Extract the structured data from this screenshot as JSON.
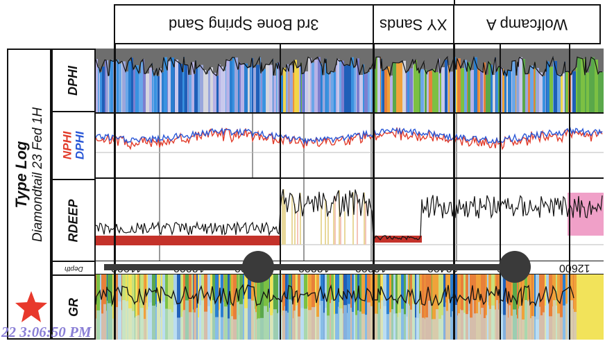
{
  "zone_headers": [
    {
      "label": "3rd Bone Spring Sand"
    },
    {
      "label": "XY Sands"
    },
    {
      "label": "Wolfcamp A"
    }
  ],
  "title": {
    "main": "Type Log",
    "sub": "Diamondtail 23 Fed 1H"
  },
  "tracks": {
    "dphi": {
      "label": "DPHI"
    },
    "porosity": {
      "nphi_label": "NPHI",
      "dphi_label": "DPHI",
      "nphi_color": "#e23b2a",
      "dphi_color": "#2a57d6"
    },
    "rdeep": {
      "label": "RDEEP"
    },
    "depth": {
      "label": "Depth",
      "ticks": [
        "12600",
        "12500",
        "12400",
        "12300",
        "12200",
        "12100",
        "12000",
        "11900"
      ]
    },
    "gr": {
      "label": "GR"
    }
  },
  "timestamp": "22 3:06:50 PM",
  "icons": {
    "star": "star-icon",
    "marker": "circle-marker"
  },
  "colors": {
    "accent_star": "#e8392c",
    "timestamp": "#8a7fd6",
    "gr_yellow": "#f2e35a",
    "rdeep_red": "#c4322a",
    "rdeep_pink": "#f0a0c8"
  }
}
